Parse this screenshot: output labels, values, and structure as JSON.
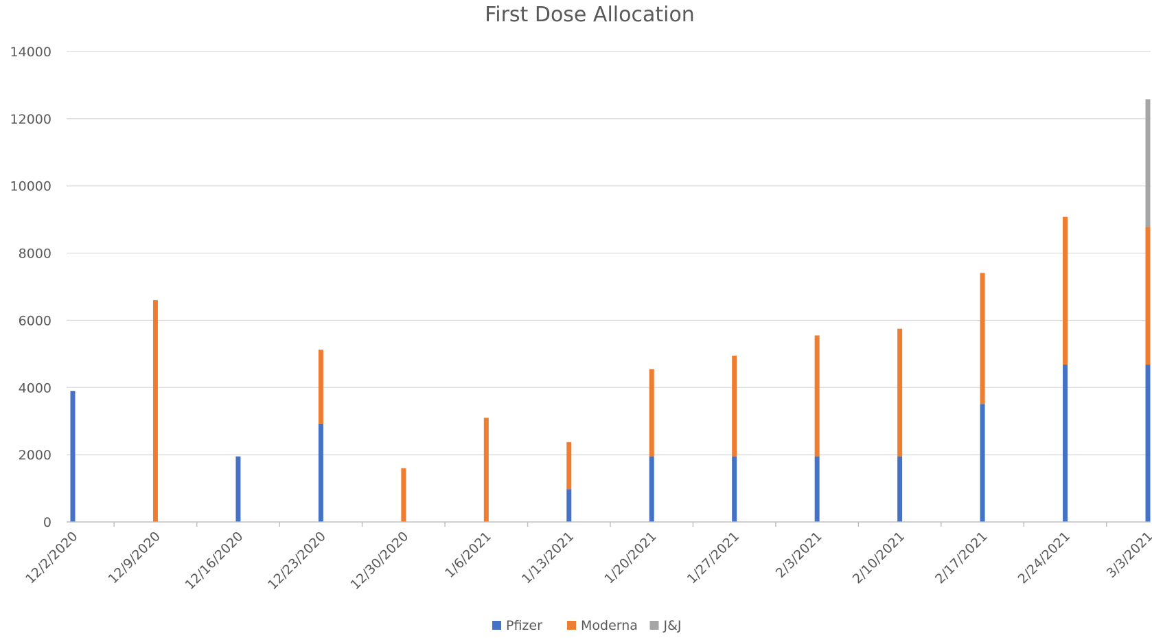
{
  "chart_data": {
    "type": "bar",
    "stacked": true,
    "title": "First Dose Allocation",
    "xlabel": "",
    "ylabel": "",
    "ylim": [
      0,
      14000
    ],
    "yticks": [
      "0",
      "2000",
      "4000",
      "6000",
      "8000",
      "10000",
      "12000",
      "14000"
    ],
    "grid": true,
    "legend_position": "bottom",
    "categories": [
      "12/2/2020",
      "12/9/2020",
      "12/16/2020",
      "12/23/2020",
      "12/30/2020",
      "1/6/2021",
      "1/13/2021",
      "1/20/2021",
      "1/27/2021",
      "2/3/2021",
      "2/10/2021",
      "2/17/2021",
      "2/24/2021",
      "3/3/2021"
    ],
    "series": [
      {
        "name": "Pfizer",
        "color": "#4472C4",
        "values": [
          3900,
          0,
          1950,
          2925,
          0,
          0,
          975,
          1950,
          1950,
          1950,
          1950,
          3510,
          4680,
          4680
        ]
      },
      {
        "name": "Moderna",
        "color": "#ED7D31",
        "values": [
          0,
          6600,
          0,
          2200,
          1600,
          3100,
          1400,
          2600,
          3000,
          3600,
          3800,
          3900,
          4400,
          4100
        ]
      },
      {
        "name": "J&J",
        "color": "#A5A5A5",
        "values": [
          0,
          0,
          0,
          0,
          0,
          0,
          0,
          0,
          0,
          0,
          0,
          0,
          0,
          3800
        ]
      }
    ]
  }
}
